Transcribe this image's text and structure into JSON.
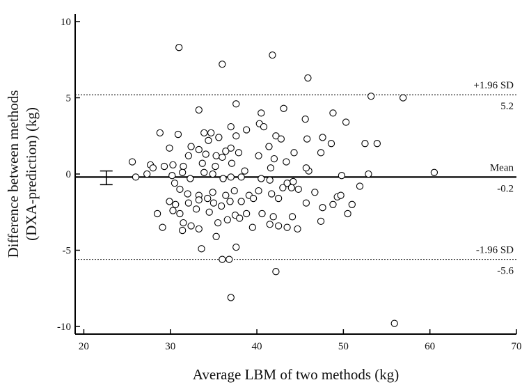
{
  "chart_data": {
    "type": "scatter",
    "title": "",
    "xlabel": "Average LBM of two methods (kg)",
    "ylabel_line1": "Difference between methods",
    "ylabel_line2": "(DXA-prediction) (kg)",
    "xlim": [
      19,
      70
    ],
    "ylim": [
      -10.5,
      10.5
    ],
    "xticks": [
      20,
      30,
      40,
      50,
      60,
      70
    ],
    "yticks": [
      10,
      5,
      0,
      -5,
      -10
    ],
    "grid": false,
    "reference_lines": [
      {
        "name": "upper-loa",
        "label": "+1.96 SD",
        "value_label": "5.2",
        "y": 5.2,
        "style": "dashed"
      },
      {
        "name": "mean",
        "label": "Mean",
        "value_label": "-0.2",
        "y": -0.2,
        "style": "solid"
      },
      {
        "name": "lower-loa",
        "label": "-1.96 SD",
        "value_label": "-5.6",
        "y": -5.6,
        "style": "dashed"
      }
    ],
    "error_bar": {
      "x": 22.6,
      "y": -0.2,
      "low": -0.7,
      "high": 0.2
    },
    "points": [
      [
        31.0,
        8.3
      ],
      [
        41.8,
        7.8
      ],
      [
        36.0,
        7.2
      ],
      [
        45.9,
        6.3
      ],
      [
        53.2,
        5.1
      ],
      [
        56.9,
        5.0
      ],
      [
        37.6,
        4.6
      ],
      [
        33.3,
        4.2
      ],
      [
        43.1,
        4.3
      ],
      [
        40.5,
        4.0
      ],
      [
        48.8,
        4.0
      ],
      [
        45.6,
        3.6
      ],
      [
        40.3,
        3.3
      ],
      [
        40.8,
        3.1
      ],
      [
        50.3,
        3.4
      ],
      [
        37.0,
        3.1
      ],
      [
        47.6,
        2.4
      ],
      [
        28.8,
        2.7
      ],
      [
        33.9,
        2.7
      ],
      [
        34.7,
        2.7
      ],
      [
        35.6,
        2.4
      ],
      [
        37.6,
        2.5
      ],
      [
        38.8,
        2.9
      ],
      [
        42.2,
        2.5
      ],
      [
        42.8,
        2.3
      ],
      [
        30.9,
        2.6
      ],
      [
        34.4,
        2.2
      ],
      [
        45.8,
        2.3
      ],
      [
        48.6,
        2.0
      ],
      [
        29.9,
        1.7
      ],
      [
        32.4,
        1.8
      ],
      [
        33.3,
        1.6
      ],
      [
        37.0,
        1.7
      ],
      [
        37.9,
        1.4
      ],
      [
        41.4,
        1.8
      ],
      [
        44.3,
        1.4
      ],
      [
        47.4,
        1.4
      ],
      [
        36.4,
        1.5
      ],
      [
        52.5,
        2.0
      ],
      [
        53.9,
        2.0
      ],
      [
        25.6,
        0.8
      ],
      [
        32.1,
        1.2
      ],
      [
        34.1,
        1.3
      ],
      [
        35.3,
        1.2
      ],
      [
        36.0,
        1.1
      ],
      [
        40.2,
        1.2
      ],
      [
        42.0,
        1.0
      ],
      [
        43.4,
        0.8
      ],
      [
        46.0,
        0.2
      ],
      [
        31.5,
        0.5
      ],
      [
        33.7,
        0.7
      ],
      [
        35.2,
        0.5
      ],
      [
        37.1,
        0.7
      ],
      [
        38.6,
        0.2
      ],
      [
        41.6,
        0.4
      ],
      [
        45.7,
        0.4
      ],
      [
        29.3,
        0.5
      ],
      [
        30.3,
        0.6
      ],
      [
        27.7,
        0.6
      ],
      [
        26.0,
        -0.2
      ],
      [
        27.3,
        0.0
      ],
      [
        28.0,
        0.4
      ],
      [
        30.2,
        -0.1
      ],
      [
        31.4,
        0.1
      ],
      [
        32.3,
        -0.3
      ],
      [
        33.9,
        0.1
      ],
      [
        34.9,
        0.0
      ],
      [
        36.1,
        -0.3
      ],
      [
        37.0,
        -0.2
      ],
      [
        38.2,
        -0.2
      ],
      [
        40.5,
        -0.3
      ],
      [
        41.5,
        -0.4
      ],
      [
        43.5,
        -0.6
      ],
      [
        44.2,
        -0.5
      ],
      [
        49.8,
        -0.1
      ],
      [
        52.9,
        0.0
      ],
      [
        60.5,
        0.1
      ],
      [
        30.5,
        -0.6
      ],
      [
        31.1,
        -1.0
      ],
      [
        32.0,
        -1.3
      ],
      [
        33.3,
        -1.4
      ],
      [
        34.9,
        -1.2
      ],
      [
        36.4,
        -1.4
      ],
      [
        37.4,
        -1.1
      ],
      [
        39.1,
        -1.4
      ],
      [
        40.2,
        -1.1
      ],
      [
        41.7,
        -1.3
      ],
      [
        43.0,
        -0.9
      ],
      [
        44.0,
        -0.9
      ],
      [
        44.8,
        -1.0
      ],
      [
        46.7,
        -1.2
      ],
      [
        49.3,
        -1.5
      ],
      [
        51.9,
        -0.8
      ],
      [
        29.9,
        -1.8
      ],
      [
        30.6,
        -2.0
      ],
      [
        32.1,
        -1.9
      ],
      [
        33.3,
        -1.7
      ],
      [
        34.3,
        -1.6
      ],
      [
        35.0,
        -1.9
      ],
      [
        36.9,
        -1.8
      ],
      [
        38.2,
        -1.8
      ],
      [
        39.6,
        -1.6
      ],
      [
        42.5,
        -1.6
      ],
      [
        45.7,
        -1.9
      ],
      [
        47.6,
        -2.2
      ],
      [
        48.8,
        -2.0
      ],
      [
        49.7,
        -1.4
      ],
      [
        51.0,
        -2.0
      ],
      [
        28.5,
        -2.6
      ],
      [
        30.3,
        -2.4
      ],
      [
        31.1,
        -2.6
      ],
      [
        33.0,
        -2.3
      ],
      [
        34.5,
        -2.5
      ],
      [
        35.9,
        -2.1
      ],
      [
        37.5,
        -2.7
      ],
      [
        38.8,
        -2.6
      ],
      [
        40.6,
        -2.6
      ],
      [
        41.9,
        -2.8
      ],
      [
        44.1,
        -2.8
      ],
      [
        47.4,
        -3.1
      ],
      [
        50.5,
        -2.6
      ],
      [
        29.1,
        -3.5
      ],
      [
        31.5,
        -3.2
      ],
      [
        32.4,
        -3.4
      ],
      [
        33.3,
        -3.6
      ],
      [
        35.5,
        -3.2
      ],
      [
        36.6,
        -3.0
      ],
      [
        38.0,
        -2.9
      ],
      [
        39.5,
        -3.5
      ],
      [
        41.5,
        -3.3
      ],
      [
        42.5,
        -3.4
      ],
      [
        43.5,
        -3.5
      ],
      [
        44.7,
        -3.6
      ],
      [
        31.4,
        -3.7
      ],
      [
        33.6,
        -4.9
      ],
      [
        35.3,
        -4.1
      ],
      [
        37.6,
        -4.8
      ],
      [
        36.0,
        -5.6
      ],
      [
        36.8,
        -5.6
      ],
      [
        42.2,
        -6.4
      ],
      [
        37.0,
        -8.1
      ],
      [
        55.9,
        -9.8
      ]
    ]
  }
}
